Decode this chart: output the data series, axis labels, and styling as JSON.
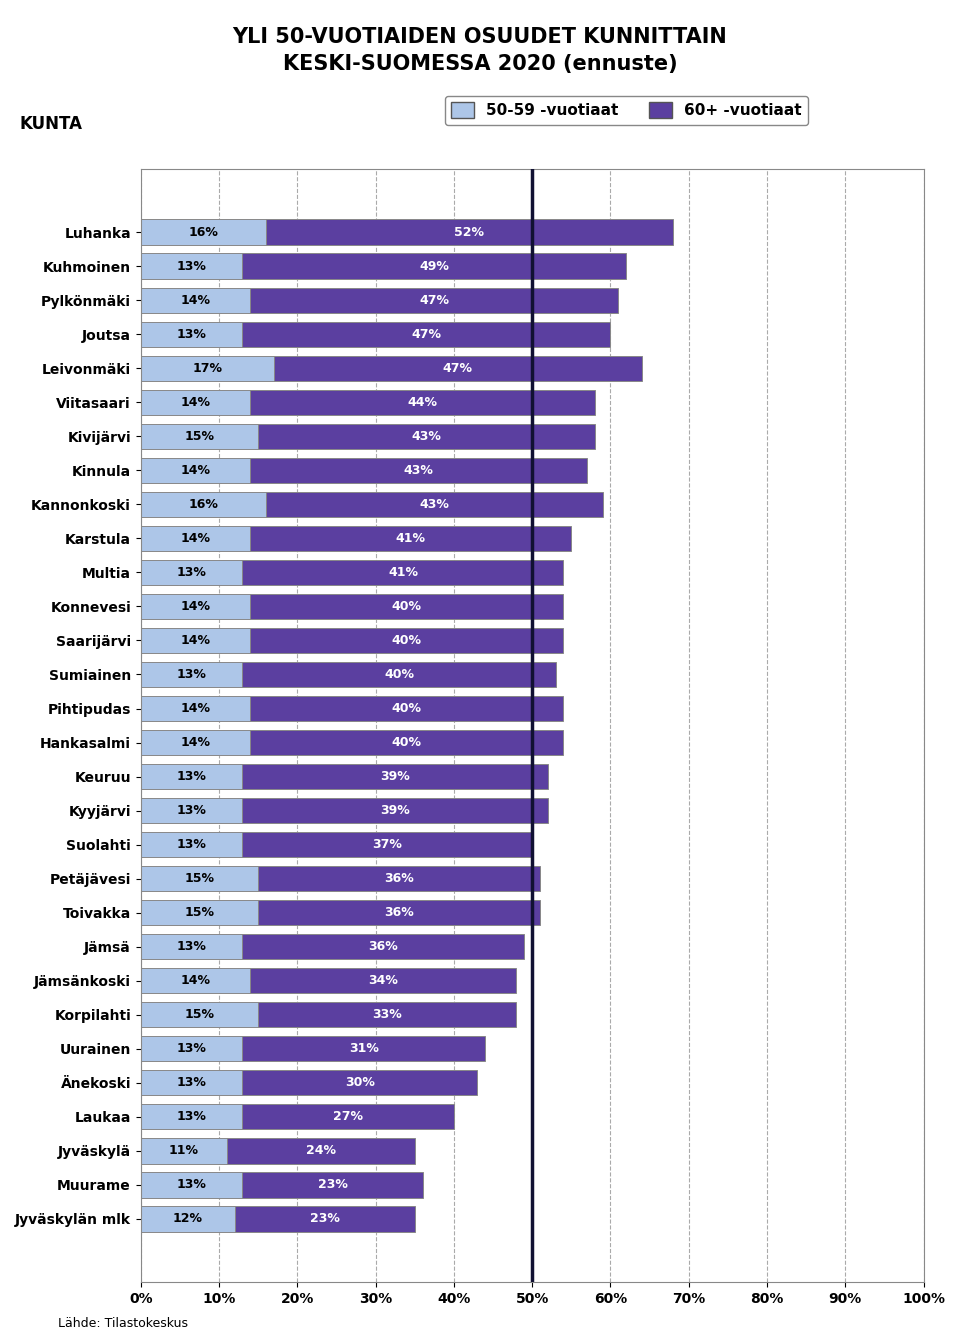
{
  "title_line1": "YLI 50-VUOTIAIDEN OSUUDET KUNNITTAIN",
  "title_line2": "KESKI-SUOMESSA 2020 (ennuste)",
  "ylabel_kunta": "KUNTA",
  "legend_label1": "50-59 -vuotiaat",
  "legend_label2": "60+ -vuotiaat",
  "source": "Lähde: Tilastokeskus",
  "categories": [
    "Luhanka",
    "Kuhmoinen",
    "Pylkönmäki",
    "Joutsa",
    "Leivonmäki",
    "Viitasaari",
    "Kivijärvi",
    "Kinnula",
    "Kannonkoski",
    "Karstula",
    "Multia",
    "Konnevesi",
    "Saarijärvi",
    "Sumiainen",
    "Pihtipudas",
    "Hankasalmi",
    "Keuruu",
    "Kyyjärvi",
    "Suolahti",
    "Petäjävesi",
    "Toivakka",
    "Jämsä",
    "Jämsänkoski",
    "Korpilahti",
    "Uurainen",
    "Änekoski",
    "Laukaa",
    "Jyväskylä",
    "Muurame",
    "Jyväskylän mlk"
  ],
  "values_50_59": [
    16,
    13,
    14,
    13,
    17,
    14,
    15,
    14,
    16,
    14,
    13,
    14,
    14,
    13,
    14,
    14,
    13,
    13,
    13,
    15,
    15,
    13,
    14,
    15,
    13,
    13,
    13,
    11,
    13,
    12
  ],
  "values_60plus": [
    52,
    49,
    47,
    47,
    47,
    44,
    43,
    43,
    43,
    41,
    41,
    40,
    40,
    40,
    40,
    40,
    39,
    39,
    37,
    36,
    36,
    36,
    34,
    33,
    31,
    30,
    27,
    24,
    23,
    23
  ],
  "color_50_59": "#adc6e8",
  "color_60plus": "#5b3fa0",
  "bar_edge_color": "#888888",
  "vline_x": 50,
  "vline_color": "#111133",
  "xlim": [
    0,
    100
  ],
  "xticks": [
    0,
    10,
    20,
    30,
    40,
    50,
    60,
    70,
    80,
    90,
    100
  ],
  "xtick_labels": [
    "0%",
    "10%",
    "20%",
    "30%",
    "40%",
    "50%",
    "60%",
    "70%",
    "80%",
    "90%",
    "100%"
  ],
  "title_fontsize": 15,
  "tick_fontsize": 10,
  "bar_label_fontsize": 9,
  "legend_fontsize": 11,
  "bg_color": "#ffffff",
  "plot_bg_color": "#ffffff"
}
